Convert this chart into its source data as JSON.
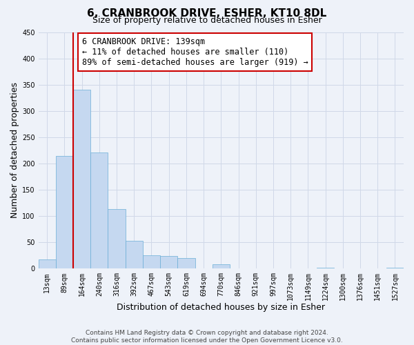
{
  "title": "6, CRANBROOK DRIVE, ESHER, KT10 8DL",
  "subtitle": "Size of property relative to detached houses in Esher",
  "xlabel": "Distribution of detached houses by size in Esher",
  "ylabel": "Number of detached properties",
  "categories": [
    "13sqm",
    "89sqm",
    "164sqm",
    "240sqm",
    "316sqm",
    "392sqm",
    "467sqm",
    "543sqm",
    "619sqm",
    "694sqm",
    "770sqm",
    "846sqm",
    "921sqm",
    "997sqm",
    "1073sqm",
    "1149sqm",
    "1224sqm",
    "1300sqm",
    "1376sqm",
    "1451sqm",
    "1527sqm"
  ],
  "values": [
    18,
    215,
    340,
    221,
    113,
    53,
    26,
    24,
    20,
    0,
    8,
    0,
    0,
    0,
    0,
    0,
    2,
    0,
    0,
    0,
    2
  ],
  "bar_color": "#c5d8f0",
  "bar_edge_color": "#6aaed6",
  "vline_color": "#cc0000",
  "annotation_lines": [
    "6 CRANBROOK DRIVE: 139sqm",
    "← 11% of detached houses are smaller (110)",
    "89% of semi-detached houses are larger (919) →"
  ],
  "annotation_box_color": "#ffffff",
  "annotation_box_edge_color": "#cc0000",
  "ylim": [
    0,
    450
  ],
  "yticks": [
    0,
    50,
    100,
    150,
    200,
    250,
    300,
    350,
    400,
    450
  ],
  "grid_color": "#d0d8e8",
  "background_color": "#eef2f9",
  "footer_line1": "Contains HM Land Registry data © Crown copyright and database right 2024.",
  "footer_line2": "Contains public sector information licensed under the Open Government Licence v3.0.",
  "title_fontsize": 11,
  "subtitle_fontsize": 9,
  "axis_label_fontsize": 9,
  "tick_fontsize": 7,
  "annotation_fontsize": 8.5,
  "footer_fontsize": 6.5
}
